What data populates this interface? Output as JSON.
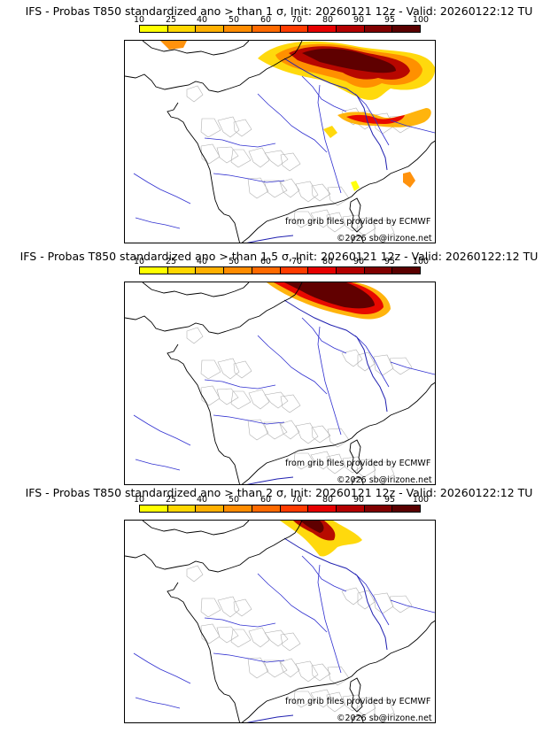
{
  "panels": [
    {
      "title": "IFS - Probas T850  standardized ano > than 1 σ, Init: 20260121 12z - Valid: 20260122:12 TU",
      "source_credit": "from grib files provided by ECMWF",
      "copyright": "©2026 sb@irizone.net"
    },
    {
      "title": "IFS - Probas T850  standardized ano > than 1.5 σ, Init: 20260121 12z - Valid: 20260122:12 TU",
      "source_credit": "from grib files provided by ECMWF",
      "copyright": "©2026 sb@irizone.net"
    },
    {
      "title": "IFS - Probas T850  standardized ano > than 2 σ, Init: 20260121 12z - Valid: 20260122:12 TU",
      "source_credit": "from grib files provided by ECMWF",
      "copyright": "©2026 sb@irizone.net"
    }
  ],
  "colorbar": {
    "ticks": [
      "10",
      "25",
      "40",
      "50",
      "60",
      "70",
      "80",
      "90",
      "95",
      "100"
    ],
    "colors": [
      "#ffff00",
      "#ffd700",
      "#ffb000",
      "#ff8c00",
      "#ff6a00",
      "#ff3c00",
      "#e60000",
      "#b30000",
      "#800000",
      "#5a0000"
    ]
  },
  "map_colors": {
    "coast": "#000000",
    "rivers": "#3030d0",
    "borders": "#2020b0",
    "regions": "#b0b0b0"
  }
}
